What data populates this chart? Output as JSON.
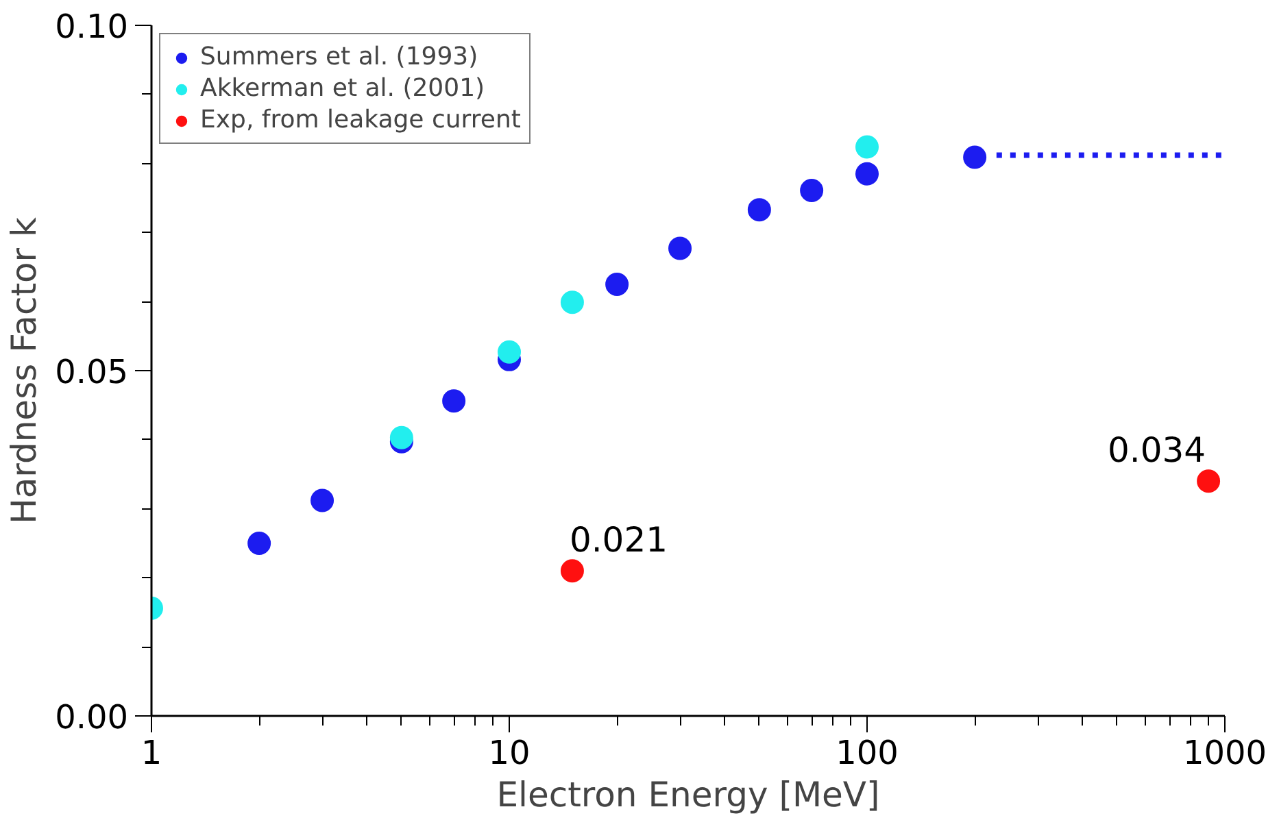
{
  "chart_data": {
    "type": "scatter",
    "xlabel": "Electron Energy [MeV]",
    "ylabel": "Hardness Factor k",
    "log": "x",
    "xlim": [
      1,
      1000
    ],
    "ylim": [
      0,
      0.1
    ],
    "xticks": [
      1,
      {
        "value": 2,
        "label": null
      },
      {
        "value": 3,
        "label": null
      },
      {
        "value": 4,
        "label": null
      },
      {
        "value": 5,
        "label": null
      },
      {
        "value": 6,
        "label": null
      },
      {
        "value": 7,
        "label": null
      },
      {
        "value": 8,
        "label": null
      },
      {
        "value": 9,
        "label": null
      },
      10,
      {
        "value": 20,
        "label": null
      },
      {
        "value": 30,
        "label": null
      },
      {
        "value": 40,
        "label": null
      },
      {
        "value": 50,
        "label": null
      },
      {
        "value": 60,
        "label": null
      },
      {
        "value": 70,
        "label": null
      },
      {
        "value": 80,
        "label": null
      },
      {
        "value": 90,
        "label": null
      },
      100,
      {
        "value": 200,
        "label": null
      },
      {
        "value": 300,
        "label": null
      },
      {
        "value": 400,
        "label": null
      },
      {
        "value": 500,
        "label": null
      },
      {
        "value": 600,
        "label": null
      },
      {
        "value": 700,
        "label": null
      },
      {
        "value": 800,
        "label": null
      },
      {
        "value": 900,
        "label": null
      },
      1000
    ],
    "yticks": [
      {
        "value": 0,
        "label": "0.00"
      },
      {
        "value": 0.01,
        "label": null
      },
      {
        "value": 0.02,
        "label": null
      },
      {
        "value": 0.03,
        "label": null
      },
      {
        "value": 0.04,
        "label": null
      },
      {
        "value": 0.05,
        "label": "0.05"
      },
      {
        "value": 0.06,
        "label": null
      },
      {
        "value": 0.07,
        "label": null
      },
      {
        "value": 0.08,
        "label": null
      },
      {
        "value": 0.09,
        "label": null
      },
      {
        "value": 0.1,
        "label": "0.10"
      }
    ],
    "grid": false,
    "legend": "top left",
    "marker": "circle",
    "series": [
      {
        "name": "Summers et al. (1993)",
        "color": "#1c1cf0",
        "x": [
          2,
          3,
          5,
          7,
          10,
          20,
          30,
          50,
          70,
          100,
          200
        ],
        "values": [
          0.025,
          0.0312,
          0.0397,
          0.0456,
          0.0516,
          0.0625,
          0.0677,
          0.0733,
          0.0761,
          0.0785,
          0.0809
        ]
      },
      {
        "name": "Akkerman et al. (2001)",
        "color": "#22eeee",
        "x": [
          1,
          5,
          10,
          15,
          100
        ],
        "values": [
          0.0156,
          0.0403,
          0.0527,
          0.0599,
          0.0824
        ]
      },
      {
        "name": "Exp, from leakage current",
        "color": "#ff1010",
        "x": [
          15,
          900
        ],
        "values": [
          0.021,
          0.034
        ]
      },
      {
        "type": "line",
        "color": "#1c1cf0",
        "line_style": "dotted",
        "marker": "none",
        "x": [
          230,
          1000
        ],
        "values": [
          0.0812,
          0.0812
        ]
      }
    ],
    "annotations": [
      {
        "text": "0.021",
        "x": 15,
        "y": 0.021
      },
      {
        "text": "0.034",
        "x": 900,
        "y": 0.034
      }
    ]
  }
}
